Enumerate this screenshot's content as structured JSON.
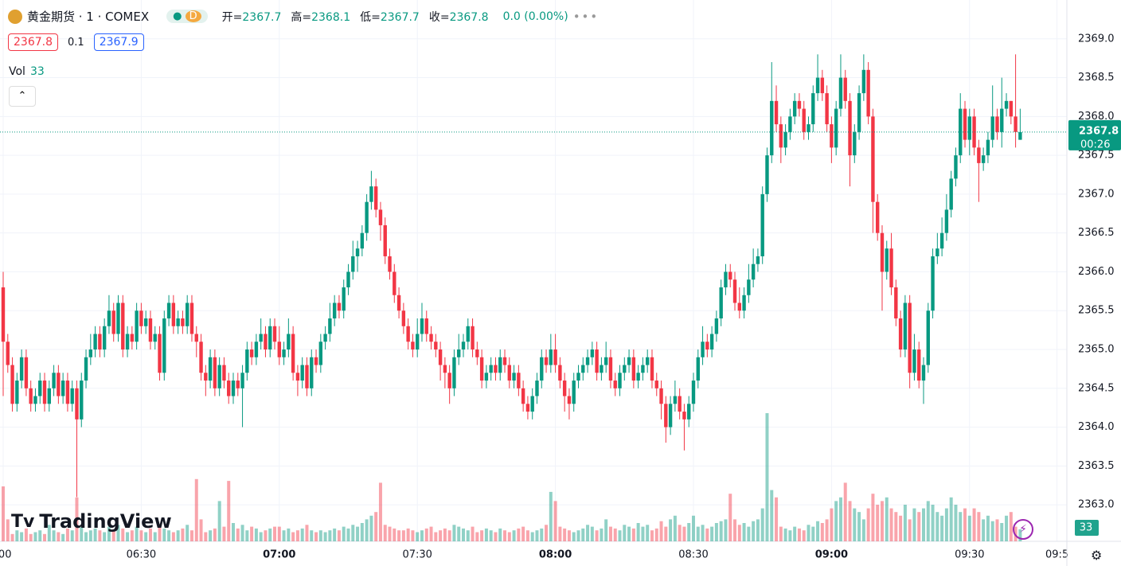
{
  "header": {
    "symbol": "黄金期货 · 1 · COMEX",
    "badge": "D",
    "ohlc": [
      {
        "label": "开=",
        "value": 2367.7
      },
      {
        "label": "高=",
        "value": 2368.1
      },
      {
        "label": "低=",
        "value": 2367.7
      },
      {
        "label": "收=",
        "value": 2367.8
      }
    ],
    "change": "0.0 (0.00%)",
    "bid": 2367.8,
    "spread": 0.1,
    "ask": 2367.9,
    "vol_label": "Vol",
    "countdown": "00:26",
    "logo": "TradingView"
  },
  "chart_data": {
    "type": "candlestick",
    "up_color": "#089981",
    "down_color": "#f23645",
    "ylim": [
      2362.53,
      2369.5
    ],
    "yticks": [
      {
        "value": 2363,
        "label": "2363.0"
      },
      {
        "value": 2363.5,
        "label": "2363.5"
      },
      {
        "value": 2364,
        "label": "2364.0"
      },
      {
        "value": 2364.5,
        "label": "2364.5"
      },
      {
        "value": 2365,
        "label": "2365.0"
      },
      {
        "value": 2365.5,
        "label": "2365.5"
      },
      {
        "value": 2366,
        "label": "2366.0"
      },
      {
        "value": 2366.5,
        "label": "2366.5"
      },
      {
        "value": 2367,
        "label": "2367.0"
      },
      {
        "value": 2367.5,
        "label": "2367.5"
      },
      {
        "value": 2368,
        "label": "2368.0"
      },
      {
        "value": 2368.5,
        "label": "2368.5"
      },
      {
        "value": 2369,
        "label": "2369.0"
      }
    ],
    "xticks": [
      {
        "value": 0,
        "label": ":00"
      },
      {
        "value": 30,
        "label": "06:30"
      },
      {
        "value": 60,
        "label": "07:00"
      },
      {
        "value": 90,
        "label": "07:30"
      },
      {
        "value": 120,
        "label": "08:00"
      },
      {
        "value": 150,
        "label": "08:30"
      },
      {
        "value": 180,
        "label": "09:00"
      },
      {
        "value": 210,
        "label": "09:30"
      },
      {
        "value": 229,
        "label": "09:5"
      }
    ],
    "grid": true,
    "open": [
      2365.8,
      2365.1,
      2364.8,
      2364.3,
      2364.6,
      2364.9,
      2364.5,
      2364.3,
      2364.4,
      2364.6,
      2364.3,
      2364.5,
      2364.7,
      2364.4,
      2364.6,
      2364.3,
      2364.5,
      2364.1,
      2364.6,
      2364.9,
      2365.0,
      2365.2,
      2365.0,
      2365.3,
      2365.5,
      2365.2,
      2365.6,
      2365.0,
      2365.2,
      2365.1,
      2365.5,
      2365.3,
      2365.4,
      2365.1,
      2365.2,
      2364.7,
      2365.4,
      2365.6,
      2365.3,
      2365.4,
      2365.3,
      2365.6,
      2365.2,
      2365.1,
      2364.7,
      2364.6,
      2364.9,
      2364.5,
      2364.8,
      2364.6,
      2364.4,
      2364.6,
      2364.5,
      2364.7,
      2365.0,
      2364.9,
      2365.1,
      2365.2,
      2365.0,
      2365.3,
      2365.1,
      2364.9,
      2365.0,
      2365.2,
      2364.7,
      2364.6,
      2364.8,
      2364.5,
      2364.9,
      2364.8,
      2365.1,
      2365.2,
      2365.4,
      2365.6,
      2365.5,
      2365.8,
      2366.0,
      2366.2,
      2366.3,
      2366.5,
      2366.9,
      2367.1,
      2366.8,
      2366.6,
      2366.2,
      2366.0,
      2365.7,
      2365.5,
      2365.3,
      2365.1,
      2365.0,
      2365.2,
      2365.4,
      2365.2,
      2365.1,
      2365.0,
      2364.8,
      2364.7,
      2364.5,
      2364.9,
      2365.0,
      2365.1,
      2365.3,
      2365.0,
      2364.9,
      2364.6,
      2364.7,
      2364.8,
      2364.7,
      2364.9,
      2364.8,
      2364.6,
      2364.7,
      2364.5,
      2364.3,
      2364.2,
      2364.4,
      2364.6,
      2364.9,
      2364.8,
      2365.0,
      2364.8,
      2364.6,
      2364.4,
      2364.3,
      2364.6,
      2364.7,
      2364.8,
      2364.9,
      2365.0,
      2364.7,
      2364.8,
      2364.9,
      2364.6,
      2364.5,
      2364.7,
      2364.8,
      2364.9,
      2364.6,
      2364.7,
      2364.8,
      2364.9,
      2364.6,
      2364.5,
      2364.3,
      2364.0,
      2364.3,
      2364.4,
      2364.2,
      2364.1,
      2364.3,
      2364.6,
      2364.9,
      2365.1,
      2365.0,
      2365.2,
      2365.4,
      2365.8,
      2366.0,
      2365.9,
      2365.6,
      2365.5,
      2365.7,
      2365.9,
      2366.1,
      2366.2,
      2367.0,
      2367.5,
      2368.2,
      2367.9,
      2367.6,
      2367.8,
      2368.0,
      2368.2,
      2368.1,
      2367.8,
      2367.9,
      2368.3,
      2368.5,
      2368.3,
      2367.9,
      2367.6,
      2368.1,
      2368.5,
      2368.2,
      2367.5,
      2367.8,
      2368.3,
      2368.6,
      2368.0,
      2366.9,
      2366.5,
      2366.0,
      2366.3,
      2365.8,
      2365.4,
      2365.0,
      2365.6,
      2364.7,
      2365.0,
      2364.6,
      2364.8,
      2365.5,
      2366.2,
      2366.3,
      2366.5,
      2366.8,
      2367.2,
      2367.5,
      2368.1,
      2367.7,
      2368.0,
      2367.6,
      2367.4,
      2367.5,
      2367.7,
      2368.0,
      2367.8,
      2368.1,
      2368.2,
      2368.0,
      2367.7
    ],
    "high": [
      2366.0,
      2365.2,
      2364.9,
      2364.7,
      2365.0,
      2365.0,
      2364.6,
      2364.5,
      2364.7,
      2364.7,
      2364.6,
      2364.8,
      2364.8,
      2364.7,
      2364.7,
      2364.6,
      2364.6,
      2364.7,
      2365.0,
      2365.2,
      2365.3,
      2365.3,
      2365.4,
      2365.7,
      2365.6,
      2365.7,
      2365.7,
      2365.3,
      2365.3,
      2365.6,
      2365.6,
      2365.5,
      2365.5,
      2365.3,
      2365.3,
      2365.5,
      2365.7,
      2365.7,
      2365.5,
      2365.5,
      2365.7,
      2365.7,
      2365.3,
      2365.2,
      2364.8,
      2365.0,
      2365.0,
      2364.9,
      2364.9,
      2364.7,
      2364.7,
      2364.7,
      2364.8,
      2365.1,
      2365.1,
      2365.2,
      2365.4,
      2365.3,
      2365.4,
      2365.4,
      2365.3,
      2365.1,
      2365.4,
      2365.3,
      2364.8,
      2364.9,
      2364.9,
      2365.0,
      2365.0,
      2365.2,
      2365.3,
      2365.6,
      2365.7,
      2365.7,
      2365.9,
      2366.1,
      2366.4,
      2366.4,
      2366.6,
      2367.0,
      2367.3,
      2367.2,
      2366.9,
      2366.7,
      2366.3,
      2366.1,
      2365.8,
      2365.6,
      2365.4,
      2365.2,
      2365.4,
      2365.6,
      2365.5,
      2365.3,
      2365.2,
      2365.1,
      2364.9,
      2364.8,
      2365.0,
      2365.2,
      2365.2,
      2365.4,
      2365.4,
      2365.1,
      2365.0,
      2364.8,
      2364.9,
      2364.9,
      2365.0,
      2365.0,
      2364.9,
      2364.8,
      2364.8,
      2364.6,
      2364.4,
      2364.5,
      2364.7,
      2365.0,
      2365.0,
      2365.2,
      2365.2,
      2364.9,
      2364.7,
      2364.5,
      2364.7,
      2364.8,
      2364.9,
      2365.0,
      2365.1,
      2365.1,
      2364.9,
      2365.1,
      2365.0,
      2364.7,
      2364.8,
      2364.9,
      2365.0,
      2365.0,
      2364.8,
      2364.9,
      2365.0,
      2365.0,
      2364.7,
      2364.6,
      2364.4,
      2364.4,
      2364.6,
      2364.5,
      2364.3,
      2364.4,
      2364.7,
      2365.0,
      2365.3,
      2365.2,
      2365.3,
      2365.5,
      2365.9,
      2366.1,
      2366.1,
      2366.0,
      2365.8,
      2365.8,
      2366.1,
      2366.3,
      2366.3,
      2367.1,
      2367.6,
      2368.7,
      2368.4,
      2368.0,
      2367.9,
      2368.1,
      2368.3,
      2368.3,
      2368.2,
      2368.0,
      2368.4,
      2368.8,
      2368.6,
      2368.4,
      2368.0,
      2368.2,
      2368.8,
      2368.6,
      2368.3,
      2367.9,
      2368.4,
      2368.8,
      2368.7,
      2368.1,
      2367.0,
      2366.6,
      2366.4,
      2366.5,
      2365.9,
      2365.5,
      2365.7,
      2365.7,
      2365.2,
      2365.1,
      2364.9,
      2365.6,
      2366.3,
      2366.5,
      2366.7,
      2367.0,
      2367.3,
      2367.6,
      2368.3,
      2368.2,
      2368.1,
      2368.1,
      2367.7,
      2367.6,
      2367.8,
      2368.4,
      2368.1,
      2368.5,
      2368.3,
      2368.2,
      2368.8,
      2368.1
    ],
    "low": [
      2364.4,
      2364.7,
      2364.2,
      2364.2,
      2364.5,
      2364.4,
      2364.2,
      2364.2,
      2364.3,
      2364.2,
      2364.2,
      2364.4,
      2364.3,
      2364.3,
      2364.2,
      2364.2,
      2363.1,
      2364.0,
      2364.5,
      2364.8,
      2364.9,
      2364.9,
      2364.9,
      2365.2,
      2365.1,
      2365.1,
      2364.9,
      2364.9,
      2365.0,
      2365.0,
      2365.2,
      2365.2,
      2365.0,
      2365.0,
      2364.6,
      2364.6,
      2365.3,
      2365.2,
      2365.2,
      2365.2,
      2365.2,
      2365.1,
      2364.9,
      2364.6,
      2364.4,
      2364.5,
      2364.4,
      2364.4,
      2364.5,
      2364.3,
      2364.3,
      2364.4,
      2364.0,
      2364.6,
      2364.8,
      2364.8,
      2365.0,
      2364.9,
      2364.9,
      2365.0,
      2364.8,
      2364.8,
      2364.9,
      2364.6,
      2364.4,
      2364.5,
      2364.4,
      2364.4,
      2364.7,
      2364.7,
      2365.0,
      2365.1,
      2365.3,
      2365.4,
      2365.4,
      2365.7,
      2365.9,
      2366.0,
      2366.2,
      2366.4,
      2366.8,
      2366.7,
      2366.4,
      2366.1,
      2365.9,
      2365.6,
      2365.4,
      2365.2,
      2365.0,
      2364.9,
      2364.9,
      2365.1,
      2365.1,
      2365.0,
      2364.9,
      2364.6,
      2364.5,
      2364.3,
      2364.4,
      2364.8,
      2364.9,
      2365.0,
      2364.9,
      2364.8,
      2364.5,
      2364.5,
      2364.6,
      2364.6,
      2364.6,
      2364.7,
      2364.5,
      2364.5,
      2364.4,
      2364.2,
      2364.1,
      2364.1,
      2364.3,
      2364.5,
      2364.7,
      2364.7,
      2364.7,
      2364.5,
      2364.2,
      2364.1,
      2364.2,
      2364.5,
      2364.6,
      2364.7,
      2364.8,
      2364.6,
      2364.6,
      2364.7,
      2364.5,
      2364.4,
      2364.4,
      2364.6,
      2364.7,
      2364.5,
      2364.5,
      2364.6,
      2364.7,
      2364.5,
      2364.4,
      2364.1,
      2363.8,
      2363.9,
      2364.2,
      2364.1,
      2363.7,
      2364.0,
      2364.2,
      2364.5,
      2364.8,
      2364.9,
      2364.9,
      2365.1,
      2365.3,
      2365.7,
      2365.8,
      2365.5,
      2365.4,
      2365.4,
      2365.6,
      2365.8,
      2366.0,
      2366.1,
      2366.9,
      2367.4,
      2367.8,
      2367.4,
      2367.5,
      2367.7,
      2367.9,
      2368.0,
      2367.7,
      2367.7,
      2367.8,
      2368.2,
      2368.2,
      2367.8,
      2367.4,
      2367.5,
      2368.0,
      2368.1,
      2367.1,
      2367.4,
      2367.7,
      2368.2,
      2367.9,
      2366.5,
      2366.4,
      2365.5,
      2365.9,
      2365.7,
      2365.3,
      2364.9,
      2364.9,
      2364.5,
      2364.6,
      2364.5,
      2364.3,
      2364.7,
      2365.4,
      2366.1,
      2366.2,
      2366.4,
      2366.7,
      2367.1,
      2367.4,
      2367.6,
      2367.5,
      2367.5,
      2366.9,
      2367.3,
      2367.4,
      2367.6,
      2367.7,
      2367.6,
      2368.0,
      2367.9,
      2367.6,
      2367.7
    ],
    "close": [
      2365.1,
      2364.8,
      2364.3,
      2364.6,
      2364.9,
      2364.5,
      2364.3,
      2364.4,
      2364.6,
      2364.3,
      2364.5,
      2364.7,
      2364.4,
      2364.6,
      2364.3,
      2364.5,
      2364.1,
      2364.6,
      2364.9,
      2365.0,
      2365.2,
      2365.0,
      2365.3,
      2365.5,
      2365.2,
      2365.6,
      2365.0,
      2365.2,
      2365.1,
      2365.5,
      2365.3,
      2365.4,
      2365.1,
      2365.2,
      2364.7,
      2365.4,
      2365.6,
      2365.3,
      2365.4,
      2365.3,
      2365.6,
      2365.2,
      2365.1,
      2364.7,
      2364.6,
      2364.9,
      2364.5,
      2364.8,
      2364.6,
      2364.4,
      2364.6,
      2364.5,
      2364.7,
      2365.0,
      2364.9,
      2365.1,
      2365.2,
      2365.0,
      2365.3,
      2365.1,
      2364.9,
      2365.0,
      2365.2,
      2364.7,
      2364.6,
      2364.8,
      2364.5,
      2364.9,
      2364.8,
      2365.1,
      2365.2,
      2365.4,
      2365.6,
      2365.5,
      2365.8,
      2366.0,
      2366.2,
      2366.3,
      2366.5,
      2366.9,
      2367.1,
      2366.8,
      2366.6,
      2366.2,
      2366.0,
      2365.7,
      2365.5,
      2365.3,
      2365.1,
      2365.0,
      2365.2,
      2365.4,
      2365.2,
      2365.1,
      2365.0,
      2364.8,
      2364.7,
      2364.5,
      2364.9,
      2365.0,
      2365.1,
      2365.3,
      2365.0,
      2364.9,
      2364.6,
      2364.7,
      2364.8,
      2364.7,
      2364.9,
      2364.8,
      2364.6,
      2364.7,
      2364.5,
      2364.3,
      2364.2,
      2364.4,
      2364.6,
      2364.9,
      2364.8,
      2365.0,
      2364.8,
      2364.6,
      2364.4,
      2364.3,
      2364.6,
      2364.7,
      2364.8,
      2364.9,
      2365.0,
      2364.7,
      2364.8,
      2364.9,
      2364.6,
      2364.5,
      2364.7,
      2364.8,
      2364.9,
      2364.6,
      2364.7,
      2364.8,
      2364.9,
      2364.6,
      2364.5,
      2364.3,
      2364.0,
      2364.3,
      2364.4,
      2364.2,
      2364.1,
      2364.3,
      2364.6,
      2364.9,
      2365.1,
      2365.0,
      2365.2,
      2365.4,
      2365.8,
      2366.0,
      2365.9,
      2365.6,
      2365.5,
      2365.7,
      2365.9,
      2366.1,
      2366.2,
      2367.0,
      2367.5,
      2368.2,
      2367.9,
      2367.6,
      2367.8,
      2368.0,
      2368.2,
      2368.1,
      2367.8,
      2367.9,
      2368.3,
      2368.5,
      2368.3,
      2367.9,
      2367.6,
      2368.1,
      2368.5,
      2368.2,
      2367.5,
      2367.8,
      2368.3,
      2368.6,
      2368.0,
      2366.9,
      2366.5,
      2366.0,
      2366.3,
      2365.8,
      2365.4,
      2365.0,
      2365.6,
      2364.7,
      2365.0,
      2364.6,
      2364.8,
      2365.5,
      2366.2,
      2366.3,
      2366.5,
      2366.8,
      2367.2,
      2367.5,
      2368.1,
      2367.7,
      2368.0,
      2367.6,
      2367.4,
      2367.5,
      2367.7,
      2368.0,
      2367.8,
      2368.1,
      2368.2,
      2368.0,
      2367.8,
      2367.8
    ],
    "volume": [
      150,
      60,
      20,
      30,
      25,
      35,
      20,
      25,
      30,
      20,
      45,
      30,
      25,
      20,
      35,
      30,
      120,
      40,
      25,
      30,
      35,
      30,
      25,
      40,
      30,
      45,
      35,
      25,
      30,
      40,
      30,
      25,
      35,
      25,
      40,
      35,
      30,
      25,
      30,
      35,
      45,
      30,
      170,
      60,
      25,
      30,
      35,
      110,
      40,
      165,
      50,
      35,
      45,
      30,
      40,
      35,
      25,
      30,
      35,
      40,
      40,
      30,
      35,
      25,
      30,
      35,
      45,
      30,
      25,
      30,
      25,
      30,
      35,
      30,
      40,
      35,
      45,
      40,
      50,
      60,
      70,
      80,
      160,
      45,
      40,
      35,
      30,
      30,
      35,
      30,
      25,
      30,
      35,
      40,
      25,
      30,
      35,
      30,
      45,
      40,
      35,
      30,
      40,
      25,
      30,
      35,
      30,
      25,
      35,
      30,
      25,
      30,
      35,
      40,
      30,
      25,
      30,
      35,
      45,
      135,
      110,
      40,
      35,
      30,
      25,
      30,
      35,
      45,
      40,
      30,
      35,
      60,
      40,
      35,
      30,
      45,
      40,
      35,
      50,
      40,
      45,
      30,
      35,
      55,
      40,
      60,
      70,
      45,
      40,
      50,
      70,
      40,
      45,
      35,
      40,
      50,
      55,
      60,
      130,
      60,
      45,
      50,
      40,
      55,
      60,
      90,
      350,
      140,
      120,
      40,
      35,
      30,
      40,
      35,
      30,
      45,
      40,
      55,
      50,
      60,
      90,
      110,
      120,
      160,
      110,
      90,
      80,
      60,
      90,
      130,
      100,
      110,
      120,
      90,
      80,
      70,
      100,
      60,
      90,
      80,
      90,
      110,
      100,
      80,
      70,
      90,
      120,
      100,
      80,
      90,
      70,
      90,
      80,
      60,
      70,
      55,
      60,
      50,
      70,
      80,
      40,
      33
    ]
  }
}
